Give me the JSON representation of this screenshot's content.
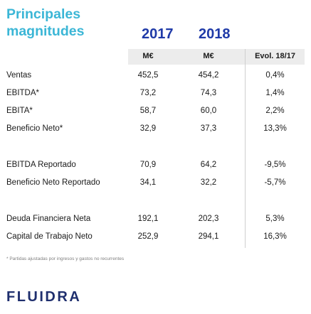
{
  "title": "Principales magnitudes",
  "years": [
    "2017",
    "2018"
  ],
  "headers": {
    "c1": "M€",
    "c2": "M€",
    "c3": "Evol. 18/17"
  },
  "rows": [
    {
      "label": "Ventas",
      "v2017": "452,5",
      "v2018": "454,2",
      "evol": "0,4%"
    },
    {
      "label": "EBITDA*",
      "v2017": "73,2",
      "v2018": "74,3",
      "evol": "1,4%"
    },
    {
      "label": "EBITA*",
      "v2017": "58,7",
      "v2018": "60,0",
      "evol": "2,2%"
    },
    {
      "label": "Beneficio Neto*",
      "v2017": "32,9",
      "v2018": "37,3",
      "evol": "13,3%"
    },
    {
      "label": "EBITDA Reportado",
      "v2017": "70,9",
      "v2018": "64,2",
      "evol": "-9,5%"
    },
    {
      "label": "Beneficio Neto Reportado",
      "v2017": "34,1",
      "v2018": "32,2",
      "evol": "-5,7%"
    },
    {
      "label": "Deuda Financiera Neta",
      "v2017": "192,1",
      "v2018": "202,3",
      "evol": "5,3%"
    },
    {
      "label": "Capital de Trabajo Neto",
      "v2017": "252,9",
      "v2018": "294,1",
      "evol": "16,3%"
    }
  ],
  "footnote": "* Partidas ajustadas por ingresos y gastos no recurrentes",
  "logo": "FLUIDRA"
}
